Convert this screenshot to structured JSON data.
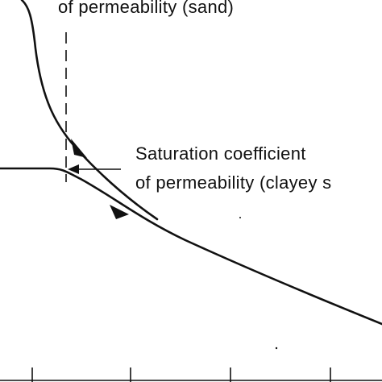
{
  "labels": {
    "sand": "of permeability (sand)",
    "clayey_line1": "Saturation coefficient",
    "clayey_line2": "of permeability (clayey s"
  }
}
